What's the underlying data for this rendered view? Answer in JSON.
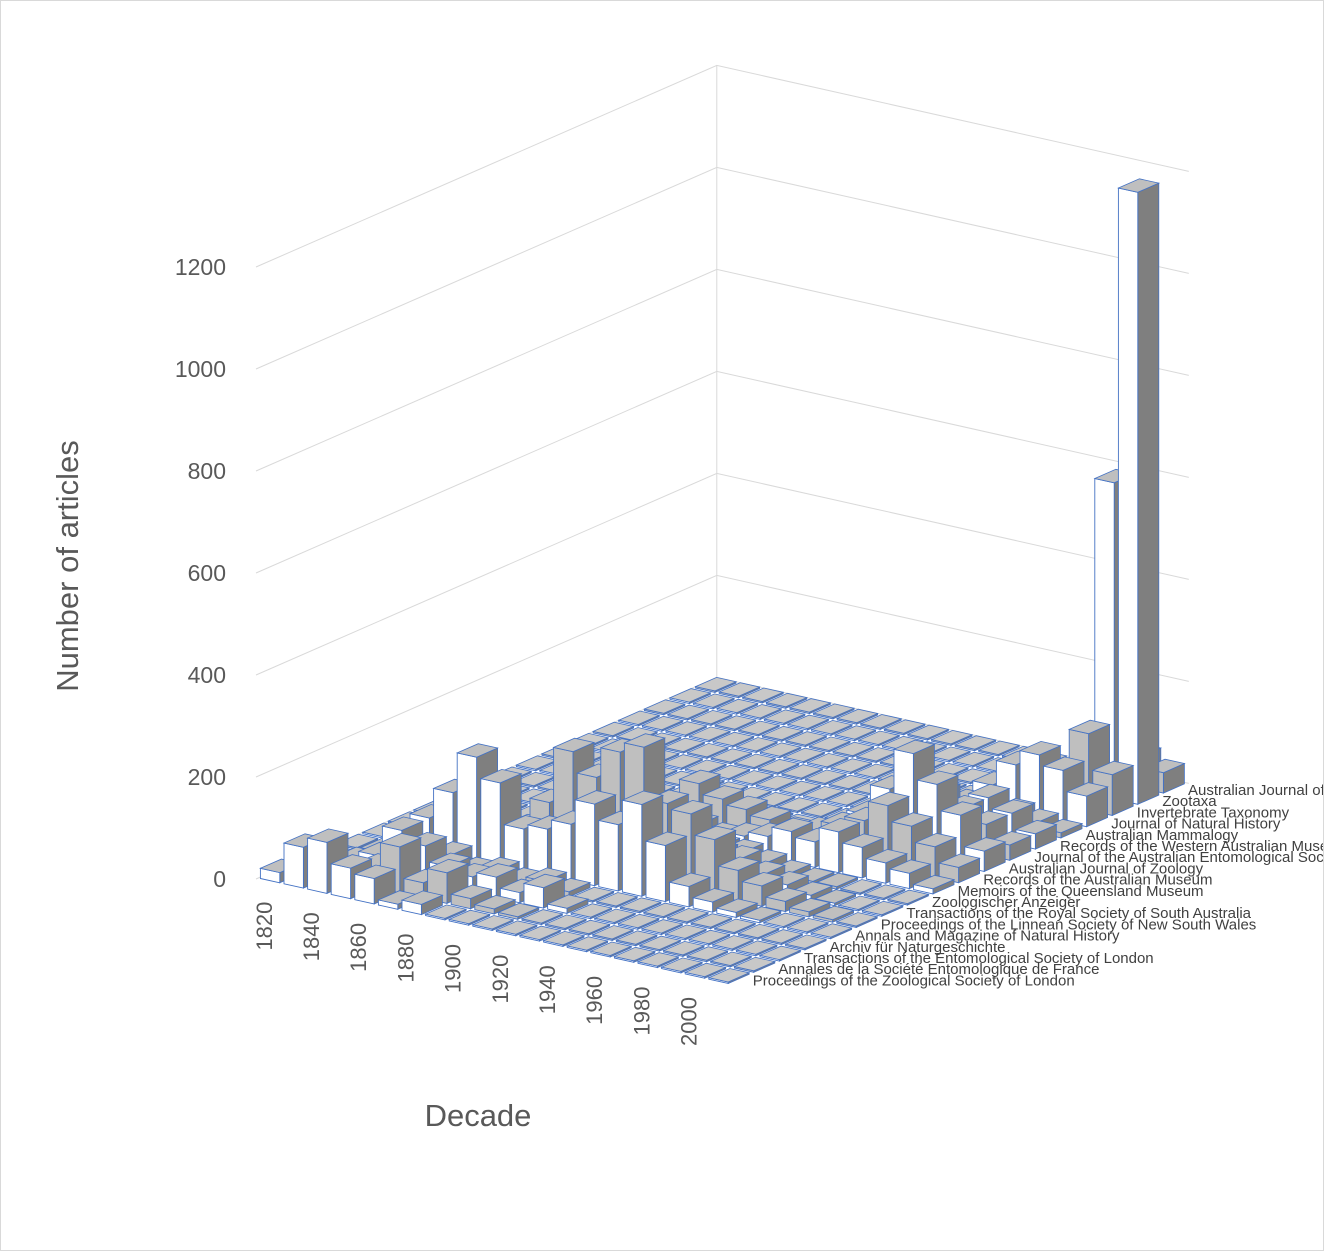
{
  "chart_data": {
    "type": "bar",
    "subtype": "3d-column",
    "title": "",
    "xlabel": "Decade",
    "ylabel": "Number of articles",
    "ylim": [
      0,
      1200
    ],
    "yticks": [
      0,
      200,
      400,
      600,
      800,
      1000,
      1200
    ],
    "grid": true,
    "legend": "none",
    "categories": [
      "1820",
      "1830",
      "1840",
      "1850",
      "1860",
      "1870",
      "1880",
      "1890",
      "1900",
      "1910",
      "1920",
      "1930",
      "1940",
      "1950",
      "1960",
      "1970",
      "1980",
      "1990",
      "2000",
      "2010"
    ],
    "xtick_labels": [
      "1820",
      "1840",
      "1860",
      "1880",
      "1900",
      "1920",
      "1940",
      "1960",
      "1980",
      "2000"
    ],
    "colors": {
      "white_bar": "#ffffff",
      "grey_bar": "#bfbfbf",
      "dark_bar": "#7f7f7f",
      "edge": "#4472c4",
      "grid": "#d9d9d9",
      "text": "#595959"
    },
    "series": [
      {
        "name": "Proceedings of the Zoological Society of London",
        "values": [
          20,
          80,
          100,
          60,
          50,
          10,
          20,
          0,
          0,
          0,
          0,
          0,
          0,
          0,
          0,
          0,
          0,
          0,
          0,
          0
        ]
      },
      {
        "name": "Annales de la Société Entomologique de France",
        "values": [
          0,
          10,
          20,
          40,
          90,
          30,
          60,
          20,
          10,
          5,
          0,
          0,
          0,
          0,
          0,
          0,
          0,
          0,
          0,
          0
        ]
      },
      {
        "name": "Transactions of the Entomological Society of London",
        "values": [
          0,
          10,
          30,
          90,
          70,
          40,
          30,
          40,
          20,
          40,
          10,
          0,
          0,
          0,
          0,
          0,
          0,
          0,
          0,
          0
        ]
      },
      {
        "name": "Archiv für Naturgeschichte",
        "values": [
          0,
          5,
          10,
          20,
          30,
          10,
          20,
          10,
          20,
          10,
          0,
          0,
          0,
          0,
          0,
          0,
          0,
          0,
          0,
          0
        ]
      },
      {
        "name": "Annals and Magazine of Natural History",
        "values": [
          0,
          20,
          60,
          120,
          200,
          160,
          80,
          90,
          110,
          160,
          130,
          180,
          110,
          40,
          20,
          10,
          5,
          0,
          0,
          0
        ]
      },
      {
        "name": "Proceedings of the Linnean Society of New South Wales",
        "values": [
          0,
          0,
          0,
          0,
          0,
          50,
          110,
          220,
          180,
          240,
          260,
          160,
          150,
          110,
          60,
          40,
          20,
          10,
          5,
          0
        ]
      },
      {
        "name": "Transactions of the Royal Society of South Australia",
        "values": [
          0,
          0,
          0,
          0,
          0,
          20,
          40,
          30,
          40,
          20,
          40,
          40,
          50,
          50,
          30,
          20,
          10,
          5,
          0,
          0
        ]
      },
      {
        "name": "Zoologischer Anzeiger",
        "values": [
          0,
          0,
          0,
          0,
          10,
          30,
          40,
          20,
          30,
          20,
          20,
          30,
          30,
          20,
          10,
          5,
          5,
          0,
          0,
          0
        ]
      },
      {
        "name": "Memoirs of the Queensland Museum",
        "values": [
          0,
          0,
          0,
          0,
          0,
          0,
          0,
          0,
          20,
          30,
          20,
          30,
          40,
          60,
          50,
          80,
          60,
          40,
          30,
          10
        ]
      },
      {
        "name": "Records of the Australian Museum",
        "values": [
          0,
          0,
          0,
          0,
          0,
          0,
          0,
          20,
          80,
          60,
          50,
          40,
          30,
          40,
          60,
          80,
          120,
          90,
          60,
          30
        ]
      },
      {
        "name": "Australian Journal of Zoology",
        "values": [
          0,
          0,
          0,
          0,
          0,
          0,
          0,
          0,
          0,
          0,
          0,
          0,
          0,
          20,
          60,
          120,
          200,
          150,
          100,
          40
        ]
      },
      {
        "name": "Journal of the Australian Entomological Society",
        "values": [
          0,
          0,
          0,
          0,
          0,
          0,
          0,
          0,
          0,
          0,
          0,
          0,
          0,
          0,
          0,
          40,
          100,
          80,
          60,
          30
        ]
      },
      {
        "name": "Records of the Western Australian Museum",
        "values": [
          0,
          0,
          0,
          0,
          0,
          0,
          0,
          0,
          0,
          0,
          0,
          0,
          0,
          0,
          10,
          40,
          60,
          80,
          60,
          30
        ]
      },
      {
        "name": "Australian Mammalogy",
        "values": [
          0,
          0,
          0,
          0,
          0,
          0,
          0,
          0,
          0,
          0,
          0,
          0,
          0,
          0,
          0,
          10,
          20,
          30,
          20,
          10
        ]
      },
      {
        "name": "Journal of Natural History",
        "values": [
          0,
          0,
          0,
          0,
          0,
          0,
          0,
          0,
          0,
          0,
          0,
          0,
          0,
          0,
          0,
          40,
          90,
          120,
          100,
          60
        ]
      },
      {
        "name": "Invertebrate Taxonomy",
        "values": [
          0,
          0,
          0,
          0,
          0,
          0,
          0,
          0,
          0,
          0,
          0,
          0,
          0,
          0,
          0,
          0,
          0,
          60,
          150,
          80
        ]
      },
      {
        "name": "Zootaxa",
        "values": [
          0,
          0,
          0,
          0,
          0,
          0,
          0,
          0,
          0,
          0,
          0,
          0,
          0,
          0,
          0,
          0,
          0,
          0,
          620,
          1200
        ]
      },
      {
        "name": "Australian Journal of Entomology",
        "values": [
          0,
          0,
          0,
          0,
          0,
          0,
          0,
          0,
          0,
          0,
          0,
          0,
          0,
          0,
          0,
          0,
          0,
          0,
          60,
          40
        ]
      }
    ]
  }
}
